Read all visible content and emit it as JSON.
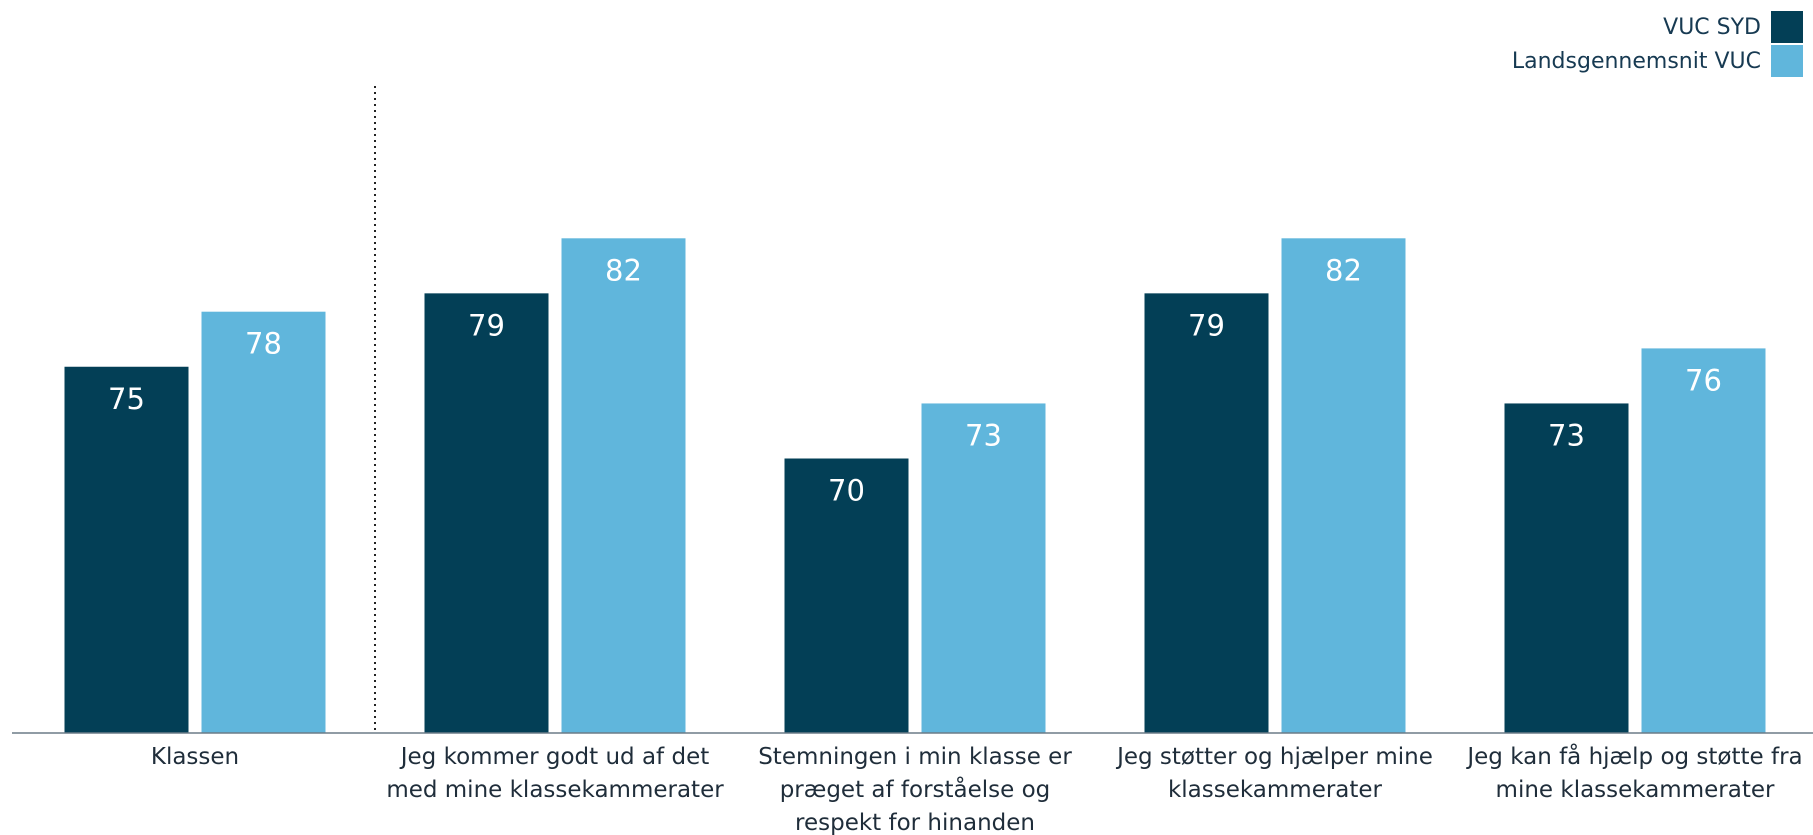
{
  "chart_data": {
    "type": "bar",
    "categories": [
      [
        "Klassen"
      ],
      [
        "Jeg kommer godt ud af det",
        "med mine klassekammerater"
      ],
      [
        "Stemningen i min klasse er",
        "præget af forståelse og",
        "respekt for hinanden"
      ],
      [
        "Jeg støtter og hjælper mine",
        "klassekammerater"
      ],
      [
        "Jeg kan få hjælp og støtte fra",
        "mine klassekammerater"
      ]
    ],
    "series": [
      {
        "name": "VUC SYD",
        "color": "#033f56",
        "values": [
          75,
          79,
          70,
          79,
          73
        ]
      },
      {
        "name": "Landsgennemsnit VUC",
        "color": "#60b6dc",
        "values": [
          78,
          82,
          73,
          82,
          76
        ]
      }
    ],
    "ylim": [
      0,
      100
    ],
    "grid": false,
    "legend": "top-right",
    "divider_after_category": 0
  }
}
